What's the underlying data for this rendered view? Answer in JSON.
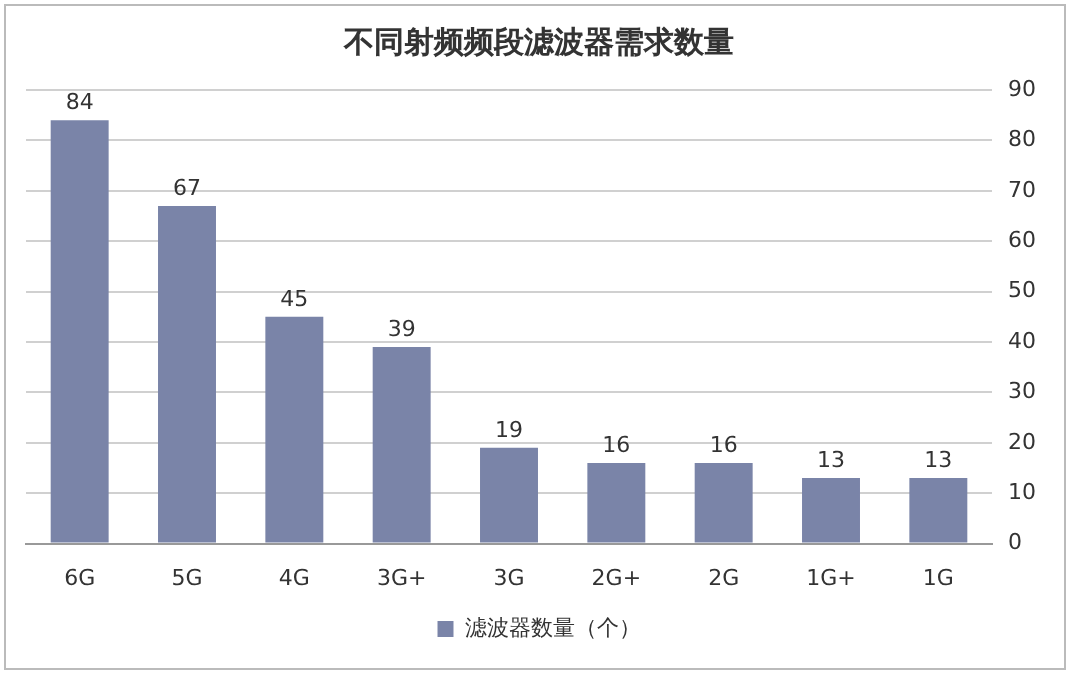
{
  "chart_data": {
    "type": "bar",
    "title": "不同射频频段滤波器需求数量",
    "categories": [
      "6G",
      "5G",
      "4G",
      "3G+",
      "3G",
      "2G+",
      "2G",
      "1G+",
      "1G"
    ],
    "series": [
      {
        "name": "滤波器数量（个）",
        "color": "#7a84a8",
        "values": [
          84,
          67,
          45,
          39,
          19,
          16,
          16,
          13,
          13
        ]
      }
    ],
    "ylim": [
      0,
      90
    ],
    "yticks": [
      0,
      10,
      20,
      30,
      40,
      50,
      60,
      70,
      80,
      90
    ],
    "grid": "y",
    "legend": "bottom",
    "data_labels": true
  }
}
